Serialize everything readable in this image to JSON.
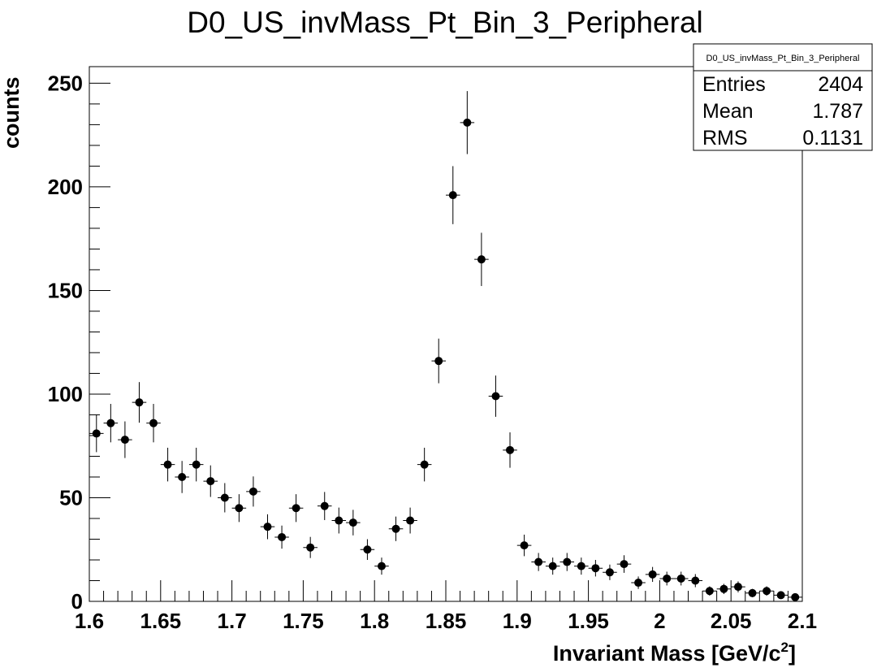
{
  "chart_data": {
    "type": "scatter",
    "title": "D0_US_invMass_Pt_Bin_3_Peripheral",
    "xlabel": "Invariant Mass [GeV/c",
    "xlabel_sup": "2",
    "xlabel_end": "]",
    "ylabel": "counts",
    "xlim": [
      1.6,
      2.1
    ],
    "ylim": [
      0,
      258
    ],
    "x_ticks": [
      "1.6",
      "1.65",
      "1.7",
      "1.75",
      "1.8",
      "1.85",
      "1.9",
      "1.95",
      "2",
      "2.05",
      "2.1"
    ],
    "y_ticks": [
      "0",
      "50",
      "100",
      "150",
      "200",
      "250"
    ],
    "bin_width": 0.01,
    "x": [
      1.605,
      1.615,
      1.625,
      1.635,
      1.645,
      1.655,
      1.665,
      1.675,
      1.685,
      1.695,
      1.705,
      1.715,
      1.725,
      1.735,
      1.745,
      1.755,
      1.765,
      1.775,
      1.785,
      1.795,
      1.805,
      1.815,
      1.825,
      1.835,
      1.845,
      1.855,
      1.865,
      1.875,
      1.885,
      1.895,
      1.905,
      1.915,
      1.925,
      1.935,
      1.945,
      1.955,
      1.965,
      1.975,
      1.985,
      1.995,
      2.005,
      2.015,
      2.025,
      2.035,
      2.045,
      2.055,
      2.065,
      2.075,
      2.085,
      2.095
    ],
    "values": [
      81,
      86,
      78,
      96,
      86,
      66,
      60,
      66,
      58,
      50,
      45,
      53,
      36,
      31,
      45,
      26,
      46,
      39,
      38,
      25,
      17,
      35,
      39,
      66,
      116,
      196,
      231,
      165,
      99,
      73,
      27,
      19,
      17,
      19,
      17,
      16,
      14,
      18,
      9,
      13,
      11,
      11,
      10,
      5,
      6,
      7,
      4,
      5,
      3,
      2
    ],
    "marker_color": "#000000",
    "grid": false,
    "stats": {
      "title": "D0_US_invMass_Pt_Bin_3_Peripheral",
      "rows": [
        {
          "label": "Entries",
          "value": "2404"
        },
        {
          "label": "Mean",
          "value": "1.787"
        },
        {
          "label": "RMS",
          "value": "0.1131"
        }
      ]
    }
  }
}
